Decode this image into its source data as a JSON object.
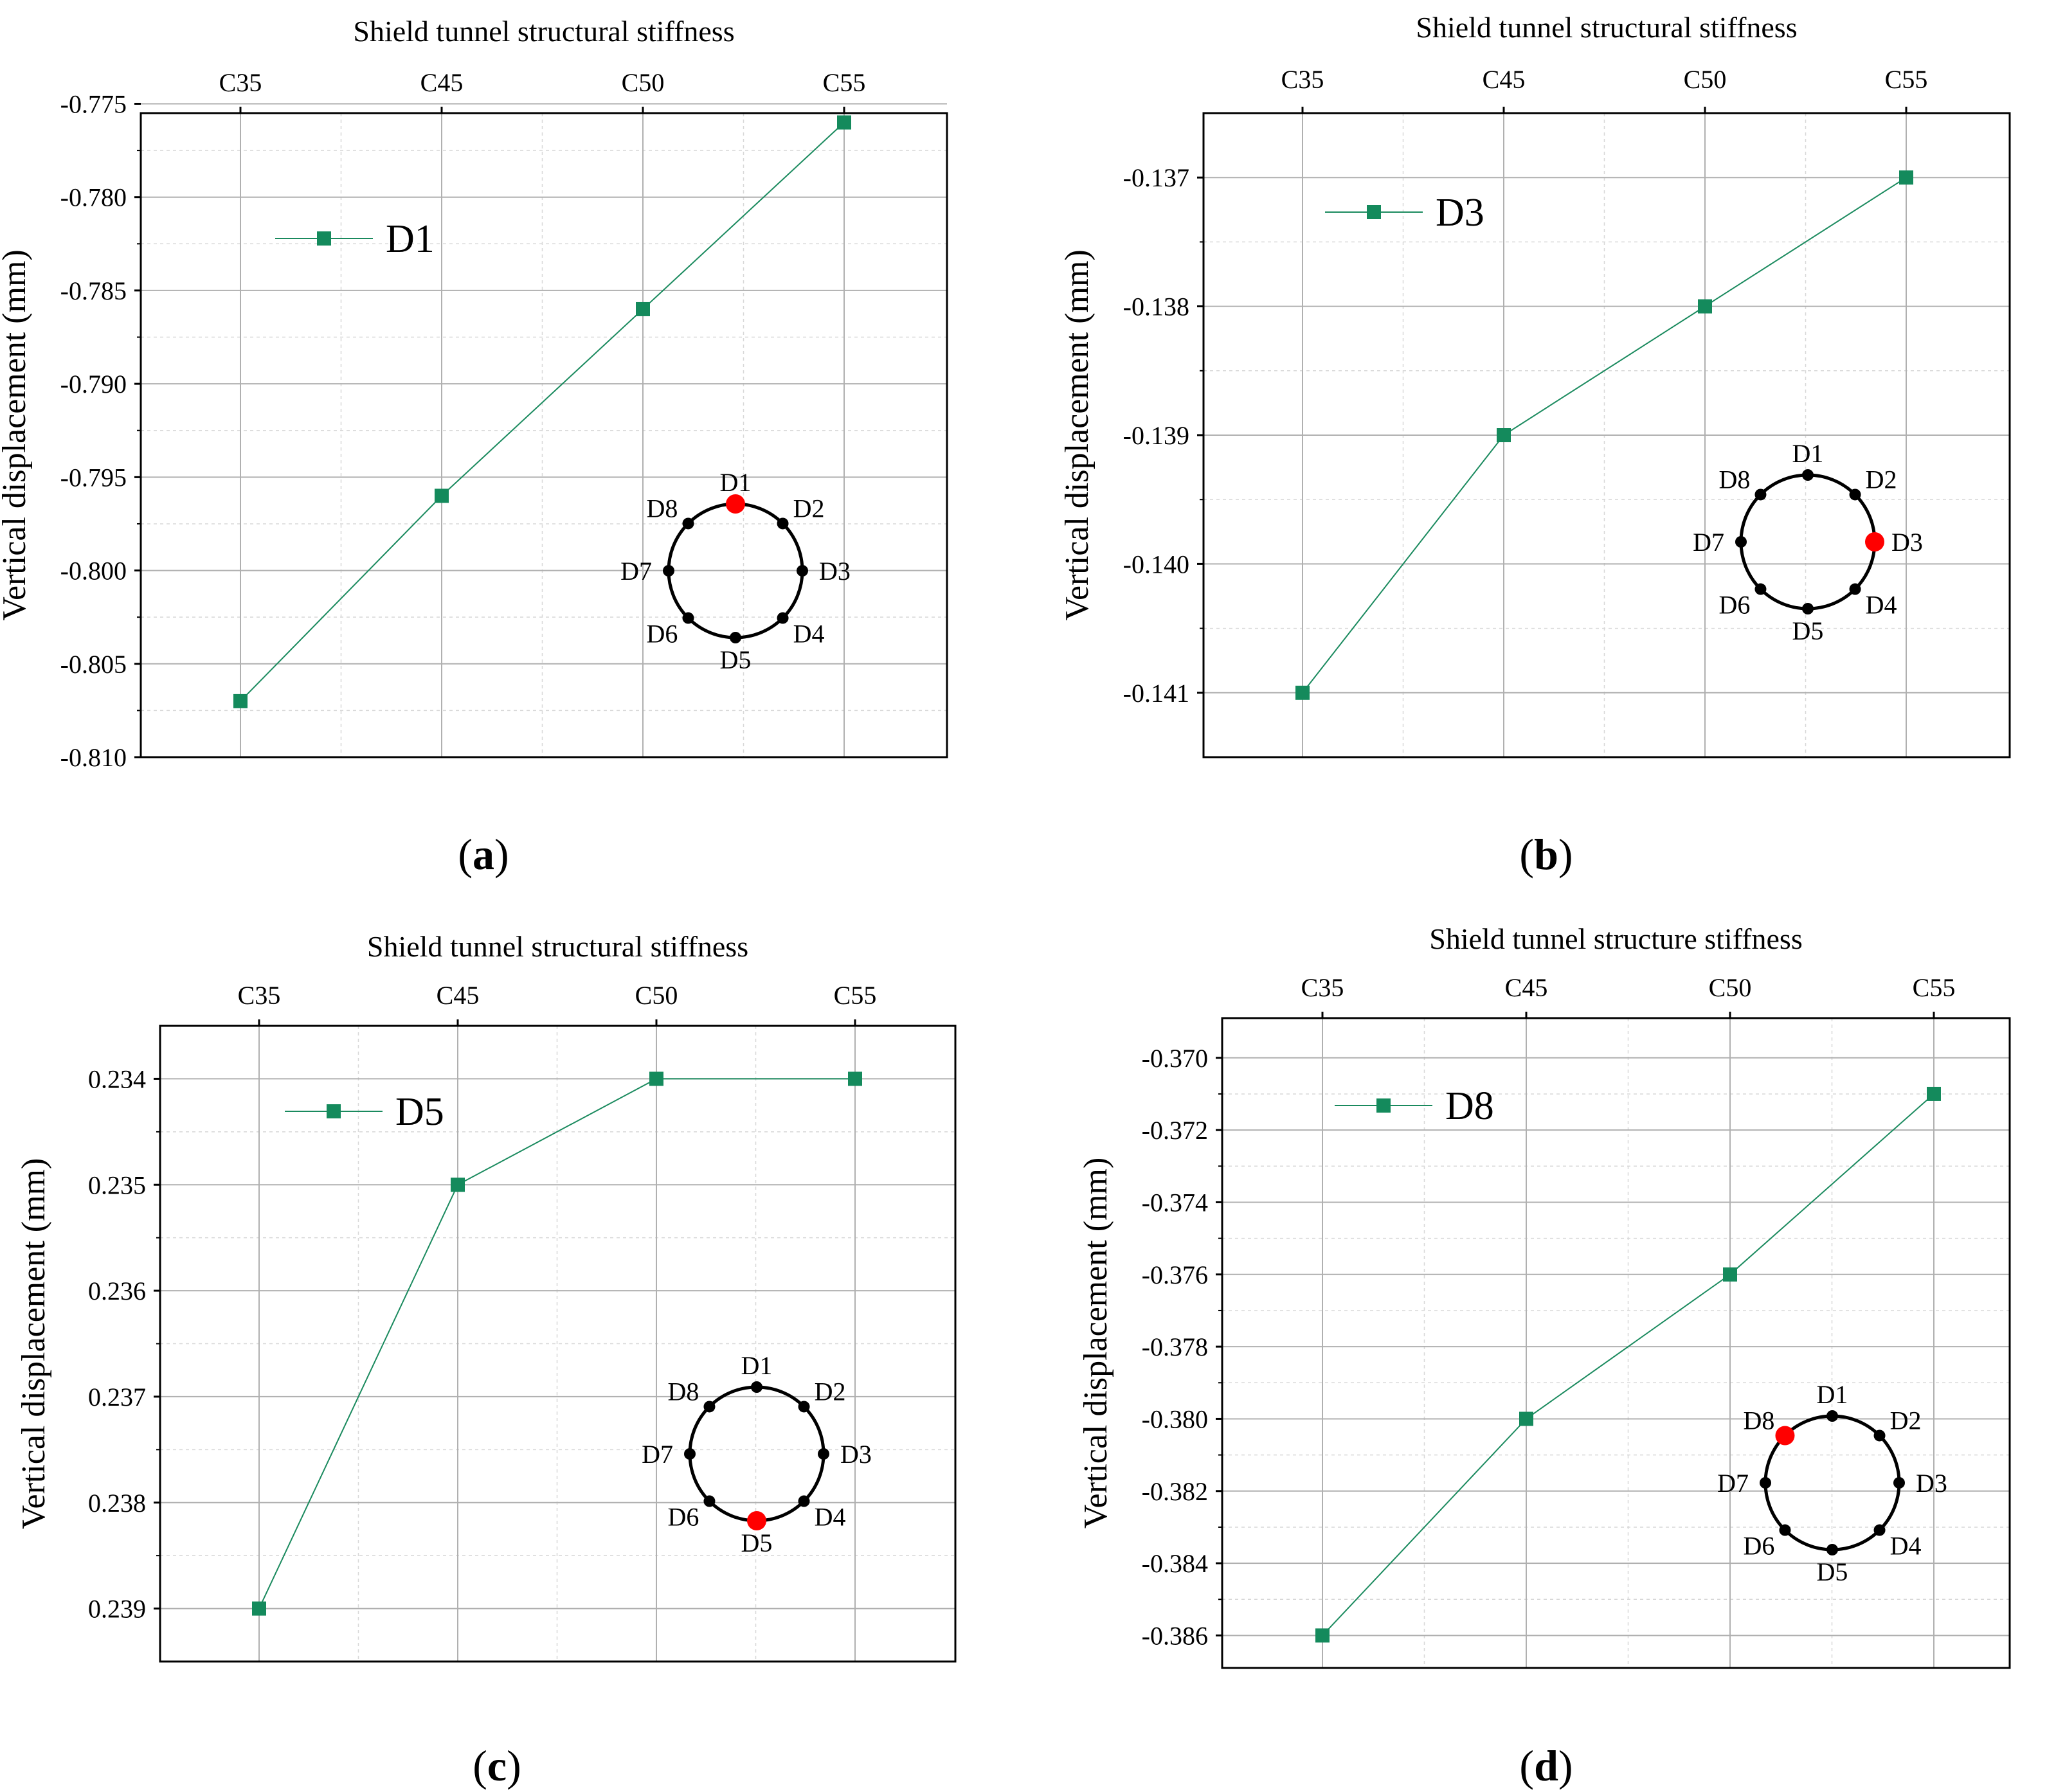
{
  "colors": {
    "series": "#1a8a5e",
    "marker": "#148a5c",
    "highlight": "#ff0000",
    "node": "#000000",
    "grid_major": "#b0b0b0",
    "grid_minor": "#d8d8d8",
    "axis": "#000000"
  },
  "chart_data": [
    {
      "panel": "(a)",
      "panel_letter": "a",
      "type": "line",
      "title": "Shield tunnel structural stiffness",
      "categories": [
        "C35",
        "C45",
        "C50",
        "C55"
      ],
      "series": [
        {
          "name": "D1",
          "values": [
            -0.807,
            -0.796,
            -0.786,
            -0.776
          ]
        }
      ],
      "ylabel": "Vertical displacement (mm)",
      "ylim": [
        -0.81,
        -0.7755
      ],
      "yticks": [
        "-0.775",
        "-0.780",
        "-0.785",
        "-0.790",
        "-0.795",
        "-0.800",
        "-0.805",
        "-0.810"
      ],
      "ytick_values": [
        -0.775,
        -0.78,
        -0.785,
        -0.79,
        -0.795,
        -0.8,
        -0.805,
        -0.81
      ],
      "inset": {
        "labels": [
          "D1",
          "D2",
          "D3",
          "D4",
          "D5",
          "D6",
          "D7",
          "D8"
        ],
        "highlight": "D1"
      }
    },
    {
      "panel": "(b)",
      "panel_letter": "b",
      "type": "line",
      "title": "Shield tunnel structural stiffness",
      "categories": [
        "C35",
        "C45",
        "C50",
        "C55"
      ],
      "series": [
        {
          "name": "D3",
          "values": [
            -0.141,
            -0.139,
            -0.138,
            -0.137
          ]
        }
      ],
      "ylabel": "Vertical displacement (mm)",
      "ylim": [
        -0.1415,
        -0.1365
      ],
      "yticks": [
        "-0.137",
        "-0.138",
        "-0.139",
        "-0.140",
        "-0.141"
      ],
      "ytick_values": [
        -0.137,
        -0.138,
        -0.139,
        -0.14,
        -0.141
      ],
      "inset": {
        "labels": [
          "D1",
          "D2",
          "D3",
          "D4",
          "D5",
          "D6",
          "D7",
          "D8"
        ],
        "highlight": "D3"
      }
    },
    {
      "panel": "(c)",
      "panel_letter": "c",
      "type": "line",
      "title": "Shield tunnel structural stiffness",
      "categories": [
        "C35",
        "C45",
        "C50",
        "C55"
      ],
      "series": [
        {
          "name": "D5",
          "values": [
            0.239,
            0.235,
            0.234,
            0.234
          ]
        }
      ],
      "ylabel": "Vertical displacement (mm)",
      "ylim": [
        0.2395,
        0.2335
      ],
      "yticks": [
        "0.234",
        "0.235",
        "0.236",
        "0.237",
        "0.238",
        "0.239"
      ],
      "ytick_values": [
        0.234,
        0.235,
        0.236,
        0.237,
        0.238,
        0.239
      ],
      "inset": {
        "labels": [
          "D1",
          "D2",
          "D3",
          "D4",
          "D5",
          "D6",
          "D7",
          "D8"
        ],
        "highlight": "D5"
      }
    },
    {
      "panel": "(d)",
      "panel_letter": "d",
      "type": "line",
      "title": "Shield tunnel structure stiffness",
      "categories": [
        "C35",
        "C45",
        "C50",
        "C55"
      ],
      "series": [
        {
          "name": "D8",
          "values": [
            -0.386,
            -0.38,
            -0.376,
            -0.371
          ]
        }
      ],
      "ylabel": "Vertical displacement (mm)",
      "ylim": [
        -0.3869,
        -0.3689
      ],
      "yticks": [
        "-0.370",
        "-0.372",
        "-0.374",
        "-0.376",
        "-0.378",
        "-0.380",
        "-0.382",
        "-0.384",
        "-0.386"
      ],
      "ytick_values": [
        -0.37,
        -0.372,
        -0.374,
        -0.376,
        -0.378,
        -0.38,
        -0.382,
        -0.384,
        -0.386
      ],
      "inset": {
        "labels": [
          "D1",
          "D2",
          "D3",
          "D4",
          "D5",
          "D6",
          "D7",
          "D8"
        ],
        "highlight": "D8"
      }
    }
  ]
}
